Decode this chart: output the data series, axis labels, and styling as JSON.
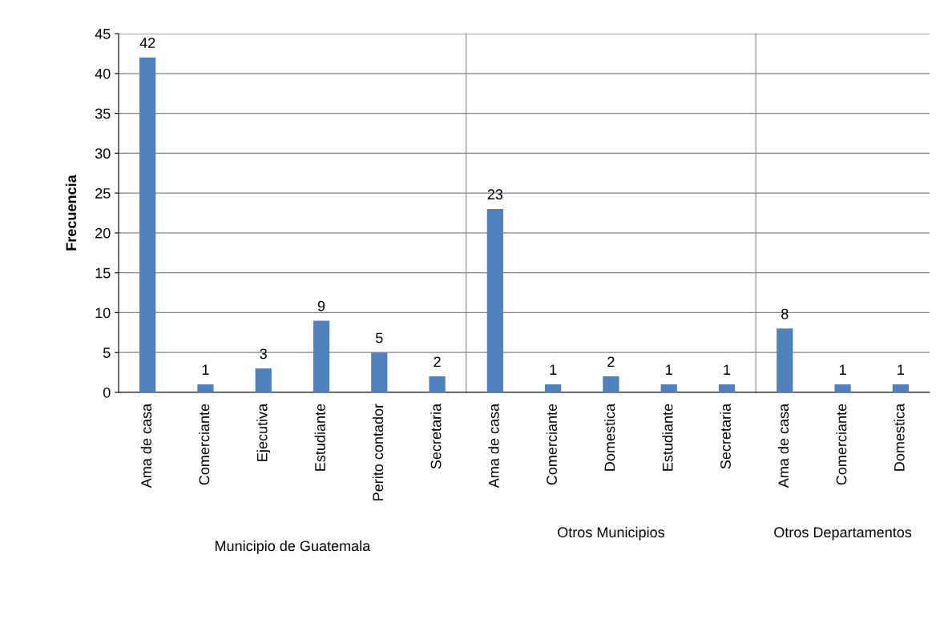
{
  "chart_data": [
    {
      "type": "bar",
      "ylabel": "Frecuencia",
      "xlabel": "Municipio de Guatemala",
      "categories": [
        "Ama de casa",
        "Comerciante",
        "Ejecutiva",
        "Estudiante",
        "Perito contador",
        "Secretaria"
      ],
      "values": [
        42,
        1,
        3,
        9,
        5,
        2
      ],
      "color": "#4f81bd",
      "ylim": [
        0,
        45
      ],
      "yticks": [
        0,
        5,
        10,
        15,
        20,
        25,
        30,
        35,
        40,
        45
      ],
      "grid": "y",
      "data_labels": true
    },
    {
      "type": "bar",
      "xlabel": "Otros Municipios",
      "categories": [
        "Ama de casa",
        "Comerciante",
        "Domestica",
        "Estudiante",
        "Secretaria"
      ],
      "values": [
        23,
        1,
        2,
        1,
        1
      ],
      "color": "#4f81bd",
      "ylim": [
        0,
        45
      ],
      "yticks": [
        0,
        5,
        10,
        15,
        20,
        25,
        30,
        35,
        40,
        45
      ],
      "grid": "y",
      "data_labels": true,
      "tick_labels": "x"
    },
    {
      "type": "bar",
      "xlabel": "Otros Departamentos",
      "categories": [
        "Ama de casa",
        "Comerciante",
        "Domestica"
      ],
      "values": [
        8,
        1,
        1
      ],
      "color": "#4f81bd",
      "ylim": [
        0,
        45
      ],
      "yticks": [
        0,
        5,
        10,
        15,
        20,
        25,
        30,
        35,
        40,
        45
      ],
      "grid": "y",
      "data_labels": true,
      "tick_labels": "x"
    }
  ]
}
